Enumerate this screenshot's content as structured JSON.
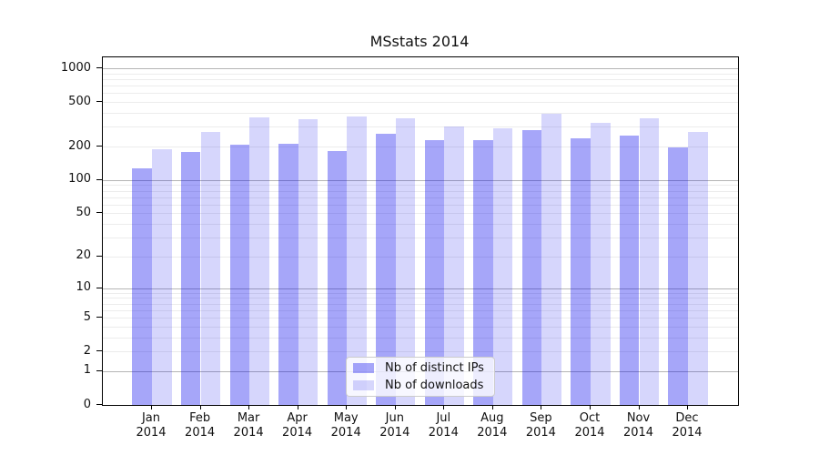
{
  "chart_data": {
    "type": "bar",
    "title": "MSstats 2014",
    "categories": [
      "Jan",
      "Feb",
      "Mar",
      "Apr",
      "May",
      "Jun",
      "Jul",
      "Aug",
      "Sep",
      "Oct",
      "Nov",
      "Dec"
    ],
    "category_year": "2014",
    "series": [
      {
        "name": "Nb of distinct IPs",
        "color": "rgba(0,0,238,0.35)",
        "color_flat_hex": "#a6a6f9",
        "values": [
          127,
          179,
          207,
          211,
          182,
          261,
          227,
          229,
          280,
          238,
          250,
          197
        ]
      },
      {
        "name": "Nb of downloads",
        "color": "rgba(0,0,238,0.16)",
        "color_flat_hex": "#d6d6fc",
        "values": [
          190,
          271,
          362,
          350,
          373,
          358,
          300,
          289,
          390,
          327,
          358,
          270
        ]
      }
    ],
    "yscale": "log1p",
    "ylim": [
      0,
      1000
    ],
    "yticks": [
      0,
      1,
      2,
      5,
      10,
      20,
      50,
      100,
      200,
      500,
      1000
    ],
    "xlabel": "",
    "ylabel": "",
    "grid": {
      "enabled": true,
      "major_values": [
        1,
        10,
        100,
        1000
      ],
      "major_color": "#b5b5b5",
      "minor_color": "#ececec"
    },
    "legend_position": "inside bottom-center"
  }
}
